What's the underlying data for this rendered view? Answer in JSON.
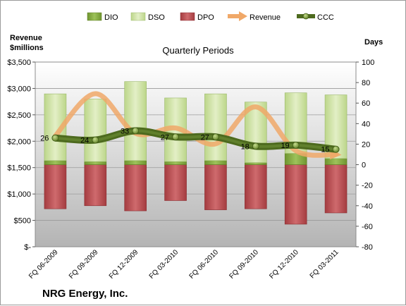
{
  "chart_data": {
    "type": "bar",
    "title": "Quarterly Periods",
    "company": "NRG Energy, Inc.",
    "left_axis_title": [
      "Revenue",
      "$millions"
    ],
    "right_axis_title": "Days",
    "categories": [
      "FQ 06-2009",
      "FQ 09-2009",
      "FQ 12-2009",
      "FQ 03-2010",
      "FQ 06-2010",
      "FQ 09-2010",
      "FQ 12-2010",
      "FQ 03-2011"
    ],
    "left_axis": {
      "min": 0,
      "max": 3500,
      "step": 500,
      "tick_labels": [
        "$-",
        "$500",
        "$1,000",
        "$1,500",
        "$2,000",
        "$2,500",
        "$3,000",
        "$3,500"
      ]
    },
    "right_axis": {
      "min": -80,
      "max": 100,
      "step": 20,
      "tick_labels": [
        "-80",
        "-60",
        "-40",
        "-20",
        "0",
        "20",
        "40",
        "60",
        "80",
        "100"
      ]
    },
    "legend_position": "top",
    "legend": [
      {
        "name": "DIO",
        "kind": "bar",
        "color": "#7fa53a"
      },
      {
        "name": "DSO",
        "kind": "bar",
        "color": "#cfe3a2"
      },
      {
        "name": "DPO",
        "kind": "bar",
        "color": "#b8484d"
      },
      {
        "name": "Revenue",
        "kind": "arrow-line",
        "color": "#f0a868"
      },
      {
        "name": "CCC",
        "kind": "line-marker",
        "color": "#4d6a1e"
      }
    ],
    "series": [
      {
        "name": "DIO",
        "axis": "right",
        "values": [
          4,
          3,
          4,
          3,
          4,
          2,
          11,
          6
        ]
      },
      {
        "name": "DSO",
        "axis": "right",
        "values": [
          65,
          61,
          77,
          62,
          65,
          59,
          59,
          62
        ]
      },
      {
        "name": "DPO",
        "axis": "right",
        "values": [
          -43,
          -40,
          -45,
          -35,
          -44,
          -43,
          -58,
          -47
        ]
      },
      {
        "name": "Revenue",
        "axis": "left",
        "values": [
          2100,
          2900,
          2150,
          2250,
          1950,
          2650,
          1820,
          1750
        ]
      },
      {
        "name": "CCC",
        "axis": "right",
        "values": [
          26,
          24,
          33,
          27,
          27,
          18,
          19,
          15
        ]
      }
    ],
    "data_labels": [
      "26",
      "24",
      "33",
      "27",
      "27",
      "18",
      "19",
      "15"
    ]
  }
}
